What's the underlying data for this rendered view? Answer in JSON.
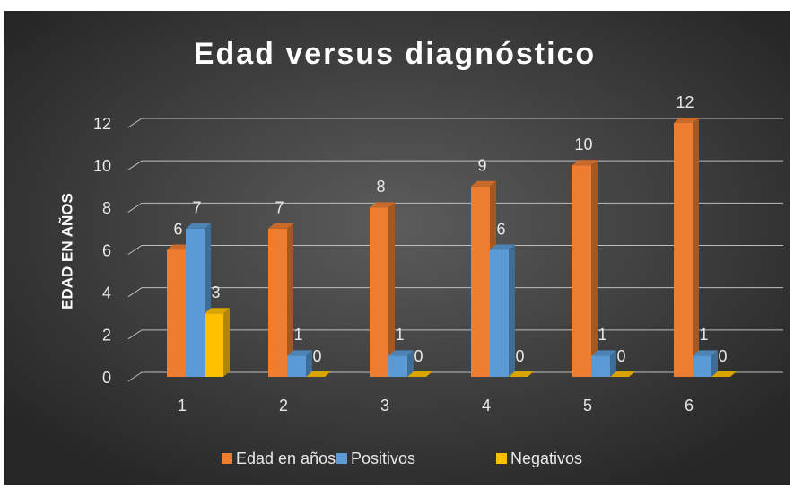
{
  "chart_data": {
    "type": "bar3d",
    "title": "Edad versus diagnóstico",
    "y_label": "EDAD EN AÑOS",
    "categories": [
      "1",
      "2",
      "3",
      "4",
      "5",
      "6"
    ],
    "series": [
      {
        "name": "Edad en años",
        "color": "#ed7d31",
        "values": [
          6,
          7,
          8,
          9,
          10,
          12
        ]
      },
      {
        "name": "Positivos",
        "color": "#5b9bd5",
        "values": [
          7,
          1,
          1,
          6,
          1,
          1
        ]
      },
      {
        "name": "Negativos",
        "color": "#ffc000",
        "values": [
          3,
          0,
          0,
          0,
          0,
          0
        ]
      }
    ],
    "ylim": [
      0,
      12
    ],
    "yticks": [
      0,
      2,
      4,
      6,
      8,
      10,
      12
    ],
    "grid": true,
    "legend": "bottom"
  }
}
